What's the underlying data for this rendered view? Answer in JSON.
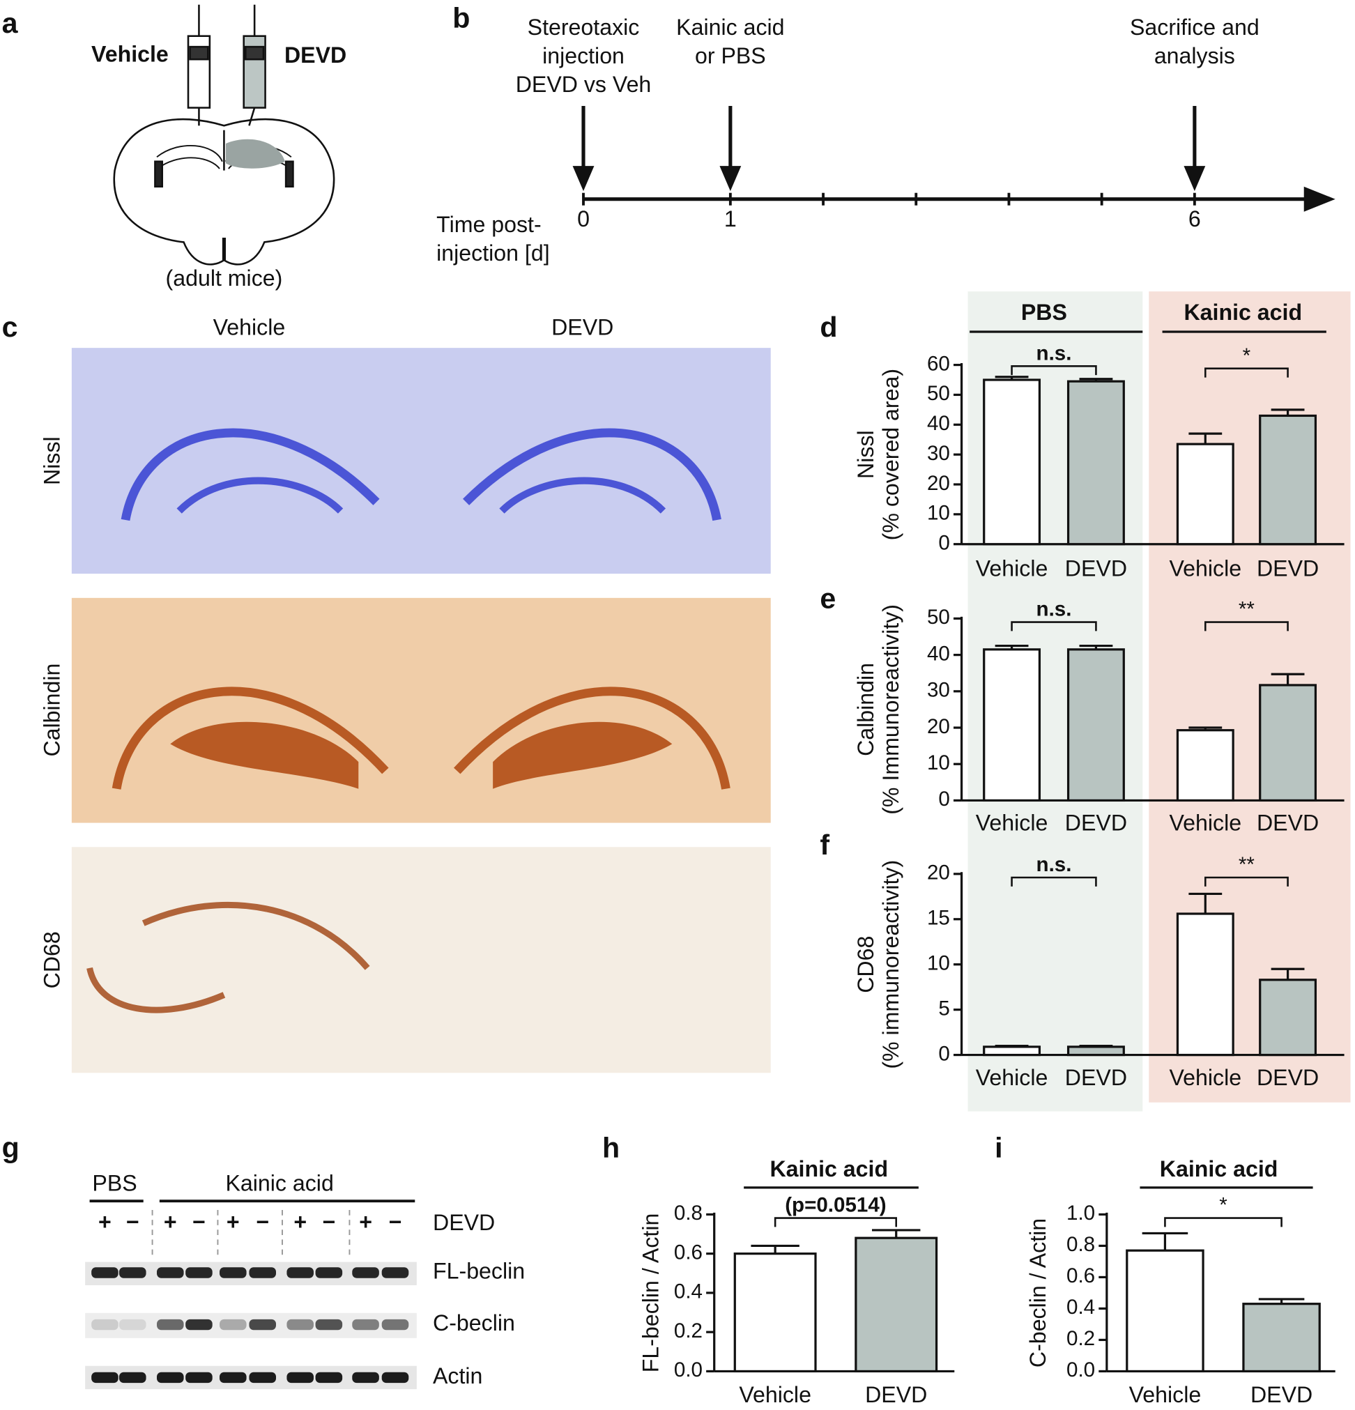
{
  "panel_labels": [
    "a",
    "b",
    "c",
    "d",
    "e",
    "f",
    "g",
    "h",
    "i"
  ],
  "panel_a": {
    "left": "Vehicle",
    "right": "DEVD",
    "caption": "(adult mice)"
  },
  "panel_b": {
    "events": [
      {
        "day": 0,
        "lines": [
          "Stereotaxic",
          "injection",
          "DEVD vs Veh"
        ]
      },
      {
        "day": 1,
        "lines": [
          "Kainic acid",
          "or PBS"
        ]
      },
      {
        "day": 6,
        "lines": [
          "Sacrifice and",
          "analysis"
        ]
      }
    ],
    "labeled_ticks": [
      0,
      1,
      6
    ],
    "minor_ticks": [
      2,
      3,
      4,
      5
    ],
    "axis_label": [
      "Time post-",
      "injection [d]"
    ]
  },
  "panel_c": {
    "columns": [
      "Vehicle",
      "DEVD"
    ],
    "rows": [
      "Nissl",
      "Calbindin",
      "CD68"
    ]
  },
  "groups": [
    {
      "name": "PBS",
      "color": "#edf2ee"
    },
    {
      "name": "Kainic acid",
      "color": "#f6e0d9"
    }
  ],
  "panel_g": {
    "groups": [
      "PBS",
      "Kainic acid"
    ],
    "treatment": "DEVD",
    "signs": [
      "+",
      "−",
      "+",
      "−",
      "+",
      "−",
      "+",
      "−",
      "+",
      "−"
    ],
    "rows": [
      "FL-beclin",
      "C-beclin",
      "Actin"
    ]
  },
  "chart_data": [
    {
      "type": "bar",
      "ylabel": [
        "Nissl",
        "(% covered area)"
      ],
      "categories": [
        "Vehicle",
        "DEVD",
        "Vehicle",
        "DEVD"
      ],
      "values": [
        55,
        54.5,
        33.5,
        43
      ],
      "errors": [
        1,
        0.8,
        3.5,
        2
      ],
      "colors": [
        "#ffffff",
        "#b8c4c1",
        "#ffffff",
        "#b8c4c1"
      ],
      "ylim": [
        0,
        60
      ],
      "yticks": [
        0,
        10,
        20,
        30,
        40,
        50,
        60
      ],
      "significance": [
        {
          "label": "n.s.",
          "bars": [
            0,
            1
          ]
        },
        {
          "label": "*",
          "bars": [
            2,
            3
          ]
        }
      ]
    },
    {
      "type": "bar",
      "ylabel": [
        "Calbindin",
        "(% Immunoreactivity)"
      ],
      "categories": [
        "Vehicle",
        "DEVD",
        "Vehicle",
        "DEVD"
      ],
      "values": [
        41.5,
        41.5,
        19.3,
        31.7
      ],
      "errors": [
        1,
        1,
        0.7,
        3
      ],
      "colors": [
        "#ffffff",
        "#b8c4c1",
        "#ffffff",
        "#b8c4c1"
      ],
      "ylim": [
        0,
        50
      ],
      "yticks": [
        0,
        10,
        20,
        30,
        40,
        50
      ],
      "significance": [
        {
          "label": "n.s.",
          "bars": [
            0,
            1
          ]
        },
        {
          "label": "**",
          "bars": [
            2,
            3
          ]
        }
      ]
    },
    {
      "type": "bar",
      "ylabel": [
        "CD68",
        "(% immunoreactivity)"
      ],
      "categories": [
        "Vehicle",
        "DEVD",
        "Vehicle",
        "DEVD"
      ],
      "values": [
        0.9,
        0.9,
        15.6,
        8.3
      ],
      "errors": [
        0.1,
        0.1,
        2.2,
        1.2
      ],
      "colors": [
        "#ffffff",
        "#b8c4c1",
        "#ffffff",
        "#b8c4c1"
      ],
      "ylim": [
        0,
        20
      ],
      "yticks": [
        0,
        5,
        10,
        15,
        20
      ],
      "significance": [
        {
          "label": "n.s.",
          "bars": [
            0,
            1
          ]
        },
        {
          "label": "**",
          "bars": [
            2,
            3
          ]
        }
      ]
    },
    {
      "type": "bar",
      "title": "Kainic acid",
      "ylabel": [
        "FL-beclin / Actin"
      ],
      "categories": [
        "Vehicle",
        "DEVD"
      ],
      "values": [
        0.6,
        0.68
      ],
      "errors": [
        0.04,
        0.04
      ],
      "colors": [
        "#ffffff",
        "#b8c4c1"
      ],
      "ylim": [
        0,
        0.8
      ],
      "yticks": [
        {
          "value": 0,
          "label": "0.0"
        },
        0.2,
        0.4,
        0.6,
        0.8
      ],
      "significance": [
        {
          "label": "(p=0.0514)",
          "bars": [
            0,
            1
          ]
        }
      ]
    },
    {
      "type": "bar",
      "title": "Kainic acid",
      "ylabel": [
        "C-beclin / Actin"
      ],
      "categories": [
        "Vehicle",
        "DEVD"
      ],
      "values": [
        0.77,
        0.43
      ],
      "errors": [
        0.11,
        0.03
      ],
      "colors": [
        "#ffffff",
        "#b8c4c1"
      ],
      "ylim": [
        0,
        1
      ],
      "yticks": [
        {
          "value": 0,
          "label": "0.0"
        },
        0.2,
        0.4,
        0.6,
        0.8,
        {
          "value": 1,
          "label": "1.0"
        }
      ],
      "significance": [
        {
          "label": "*",
          "bars": [
            0,
            1
          ]
        }
      ]
    }
  ]
}
